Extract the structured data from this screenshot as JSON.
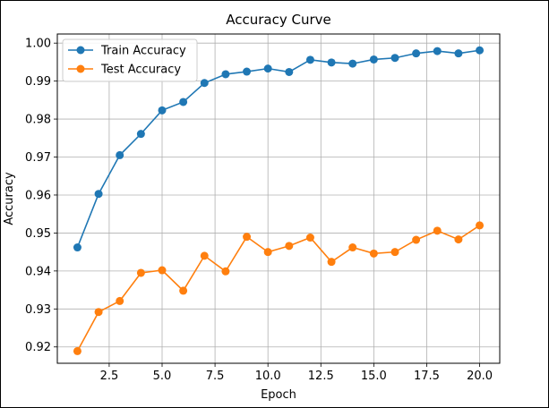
{
  "chart_data": {
    "type": "line",
    "title": "Accuracy Curve",
    "xlabel": "Epoch",
    "ylabel": "Accuracy",
    "xlim": [
      0.05,
      20.95
    ],
    "ylim": [
      0.9157,
      1.0024
    ],
    "grid": true,
    "legend_position": "top-left",
    "x_ticks": [
      2.5,
      5.0,
      7.5,
      10.0,
      12.5,
      15.0,
      17.5,
      20.0
    ],
    "x_tick_labels": [
      "2.5",
      "5.0",
      "7.5",
      "10.0",
      "12.5",
      "15.0",
      "17.5",
      "20.0"
    ],
    "y_ticks": [
      0.92,
      0.93,
      0.94,
      0.95,
      0.96,
      0.97,
      0.98,
      0.99,
      1.0
    ],
    "y_tick_labels": [
      "0.92",
      "0.93",
      "0.94",
      "0.95",
      "0.96",
      "0.97",
      "0.98",
      "0.99",
      "1.00"
    ],
    "x": [
      1,
      2,
      3,
      4,
      5,
      6,
      7,
      8,
      9,
      10,
      11,
      12,
      13,
      14,
      15,
      16,
      17,
      18,
      19,
      20
    ],
    "series": [
      {
        "name": "Train Accuracy",
        "color": "#1f77b4",
        "values": [
          0.9462,
          0.9603,
          0.9705,
          0.9761,
          0.9823,
          0.9845,
          0.9895,
          0.9918,
          0.9925,
          0.9933,
          0.9924,
          0.9956,
          0.9949,
          0.9946,
          0.9957,
          0.9961,
          0.9973,
          0.9979,
          0.9973,
          0.9981
        ]
      },
      {
        "name": "Test Accuracy",
        "color": "#ff7f0e",
        "values": [
          0.9189,
          0.9292,
          0.9321,
          0.9395,
          0.9402,
          0.9348,
          0.944,
          0.9399,
          0.949,
          0.945,
          0.9466,
          0.9488,
          0.9424,
          0.9462,
          0.9446,
          0.945,
          0.9482,
          0.9506,
          0.9483,
          0.952
        ]
      }
    ]
  }
}
